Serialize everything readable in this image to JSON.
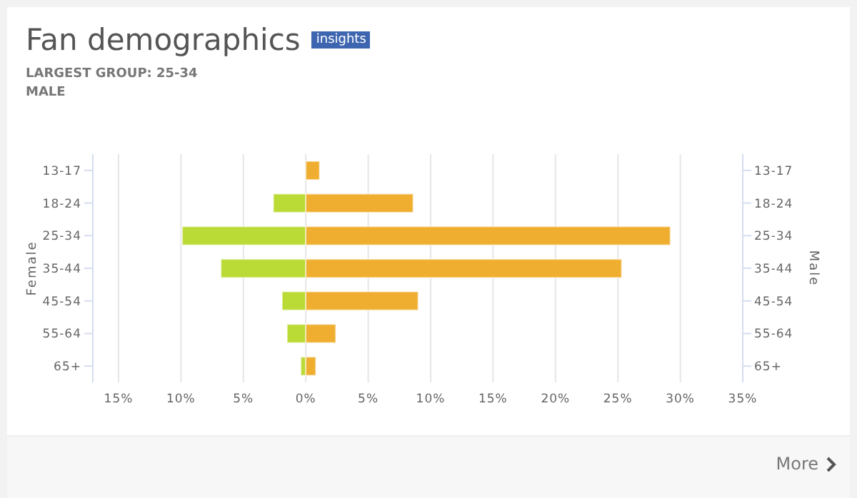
{
  "chart_data": {
    "type": "bar",
    "orientation": "horizontal",
    "stacked": true,
    "title": "Fan demographics",
    "subtitle": "LARGEST GROUP: 25-34\nMALE",
    "ylabel": "Female",
    "y2label": "Male",
    "annotations": [
      "insights",
      "More"
    ],
    "categories": [
      "13-17",
      "18-24",
      "25-34",
      "35-44",
      "45-54",
      "55-64",
      "65+"
    ],
    "series": [
      {
        "color": "#bada35",
        "values": [
          0,
          -2.6,
          -9.9,
          -6.8,
          -1.9,
          -1.5,
          -0.4
        ]
      },
      {
        "color": "#efae2f",
        "values": [
          1.1,
          8.6,
          29.2,
          25.3,
          9.0,
          2.4,
          0.8
        ]
      }
    ],
    "xlim": [
      -15,
      35
    ],
    "xticks": [
      {
        "value": -15,
        "label": "15%"
      },
      {
        "value": -10,
        "label": "10%"
      },
      {
        "value": -5,
        "label": "5%"
      },
      {
        "value": 0,
        "label": "0%"
      },
      {
        "value": 5,
        "label": "5%"
      },
      {
        "value": 10,
        "label": "10%"
      },
      {
        "value": 15,
        "label": "15%"
      },
      {
        "value": 20,
        "label": "20%"
      },
      {
        "value": 25,
        "label": "25%"
      },
      {
        "value": 30,
        "label": "30%"
      },
      {
        "value": 35,
        "label": "35%"
      }
    ],
    "grid": "x",
    "legend": false
  }
}
